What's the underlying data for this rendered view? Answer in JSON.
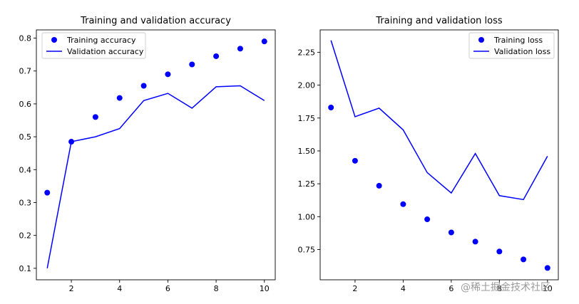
{
  "watermark": "@稀土掘金技术社区",
  "chart_data": [
    {
      "type": "scatter+line",
      "title": "Training and validation accuracy",
      "xlabel": "",
      "ylabel": "",
      "xlim": [
        0.55,
        10.45
      ],
      "ylim": [
        0.065,
        0.825
      ],
      "xticks": [
        2,
        4,
        6,
        8,
        10
      ],
      "yticks": [
        0.1,
        0.2,
        0.3,
        0.4,
        0.5,
        0.6,
        0.7,
        0.8
      ],
      "ytick_labels": [
        "0.1",
        "0.2",
        "0.3",
        "0.4",
        "0.5",
        "0.6",
        "0.7",
        "0.8"
      ],
      "grid": false,
      "legend_position": "upper-left",
      "x": [
        1,
        2,
        3,
        4,
        5,
        6,
        7,
        8,
        9,
        10
      ],
      "series": [
        {
          "name": "Training accuracy",
          "style": "dots",
          "color": "#0000ff",
          "values": [
            0.33,
            0.485,
            0.56,
            0.618,
            0.655,
            0.69,
            0.72,
            0.745,
            0.768,
            0.79
          ]
        },
        {
          "name": "Validation accuracy",
          "style": "line",
          "color": "#0000ff",
          "values": [
            0.1,
            0.485,
            0.5,
            0.525,
            0.61,
            0.632,
            0.587,
            0.652,
            0.655,
            0.61
          ]
        }
      ]
    },
    {
      "type": "scatter+line",
      "title": "Training and validation loss",
      "xlabel": "",
      "ylabel": "",
      "xlim": [
        0.55,
        10.45
      ],
      "ylim": [
        0.52,
        2.42
      ],
      "xticks": [
        2,
        4,
        6,
        8,
        10
      ],
      "yticks": [
        0.75,
        1.0,
        1.25,
        1.5,
        1.75,
        2.0,
        2.25
      ],
      "ytick_labels": [
        "0.75",
        "1.00",
        "1.25",
        "1.50",
        "1.75",
        "2.00",
        "2.25"
      ],
      "grid": false,
      "legend_position": "upper-right",
      "x": [
        1,
        2,
        3,
        4,
        5,
        6,
        7,
        8,
        9,
        10
      ],
      "series": [
        {
          "name": "Training loss",
          "style": "dots",
          "color": "#0000ff",
          "values": [
            1.83,
            1.425,
            1.235,
            1.095,
            0.98,
            0.88,
            0.81,
            0.735,
            0.675,
            0.61
          ]
        },
        {
          "name": "Validation loss",
          "style": "line",
          "color": "#0000ff",
          "values": [
            2.34,
            1.76,
            1.825,
            1.66,
            1.335,
            1.18,
            1.48,
            1.16,
            1.13,
            1.46
          ]
        }
      ]
    }
  ]
}
